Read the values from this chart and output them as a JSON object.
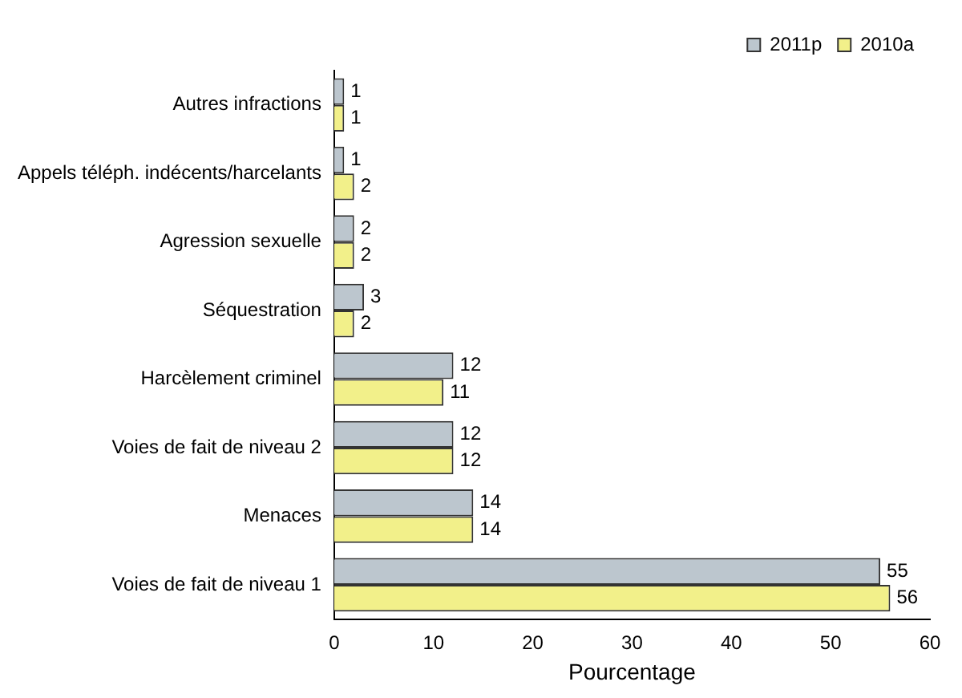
{
  "chart_data": {
    "type": "bar",
    "orientation": "horizontal",
    "xlabel": "Pourcentage",
    "categories": [
      "Autres infractions",
      "Appels téléph. indécents/harcelants",
      "Agression sexuelle",
      "Séquestration",
      "Harcèlement criminel",
      "Voies de fait de niveau 2",
      "Menaces",
      "Voies de fait de niveau 1"
    ],
    "series": [
      {
        "name": "2011p",
        "color": "#bcc6ce",
        "values": [
          1,
          1,
          2,
          3,
          12,
          12,
          14,
          55
        ]
      },
      {
        "name": "2010a",
        "color": "#f2f08a",
        "values": [
          1,
          2,
          2,
          2,
          11,
          12,
          14,
          56
        ]
      }
    ],
    "xlim": [
      0,
      60
    ],
    "xticks": [
      0,
      10,
      20,
      30,
      40,
      50,
      60
    ],
    "grid": false,
    "legend": "top right",
    "data_labels": true
  }
}
